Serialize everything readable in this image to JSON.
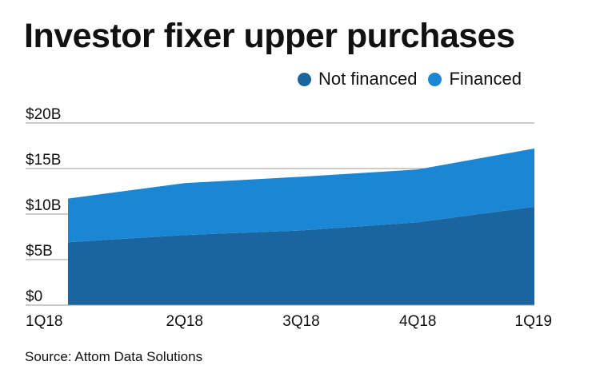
{
  "title": "Investor fixer upper purchases",
  "source": "Source: Attom Data Solutions",
  "chart_data": {
    "type": "area",
    "stacked": true,
    "categories": [
      "1Q18",
      "2Q18",
      "3Q18",
      "4Q18",
      "1Q19"
    ],
    "series": [
      {
        "name": "Not financed",
        "color": "#1a64a0",
        "values": [
          6.9,
          7.7,
          8.2,
          9.1,
          10.8
        ]
      },
      {
        "name": "Financed",
        "color": "#1b87d4",
        "values": [
          4.8,
          5.7,
          5.9,
          5.8,
          6.4
        ]
      }
    ],
    "y_ticks": [
      "$0",
      "$5B",
      "$10B",
      "$15B",
      "$20B"
    ],
    "y_tick_values": [
      0,
      5,
      10,
      15,
      20
    ],
    "ylim": [
      0,
      20
    ],
    "grid": true,
    "legend": "top-right"
  }
}
